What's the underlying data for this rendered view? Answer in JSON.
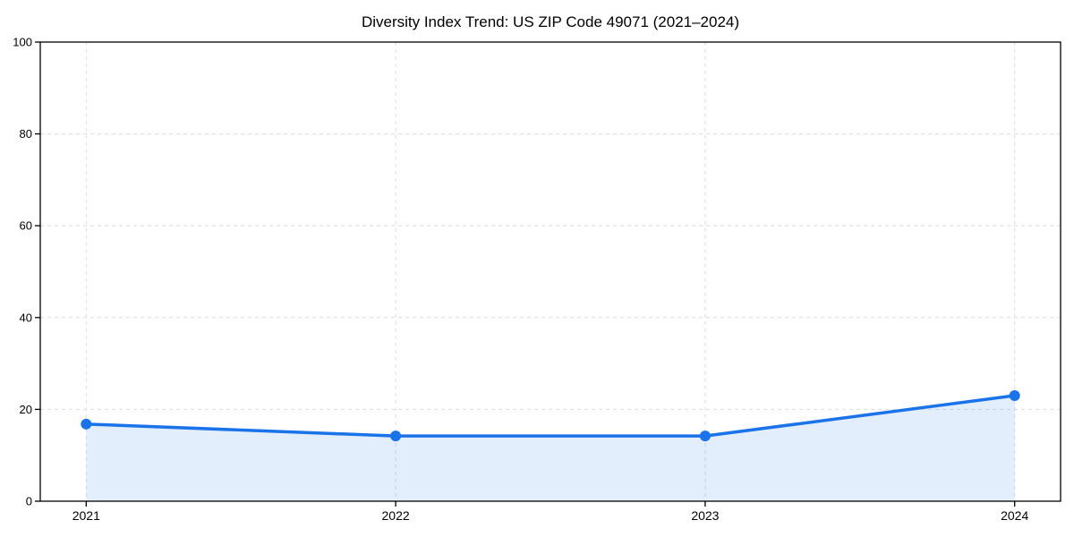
{
  "page": {
    "background": "#ffffff"
  },
  "chart_data": {
    "type": "area",
    "title": "Diversity Index Trend: US ZIP Code 49071 (2021–2024)",
    "x": [
      "2021",
      "2022",
      "2023",
      "2024"
    ],
    "series": [
      {
        "name": "Diversity Index",
        "values": [
          16.8,
          14.2,
          14.2,
          23.0
        ]
      }
    ],
    "xlabel": "",
    "ylabel": "",
    "ylim": [
      0,
      100
    ],
    "yticks": [
      0,
      20,
      40,
      60,
      80,
      100
    ],
    "xticks": [
      "2021",
      "2022",
      "2023",
      "2024"
    ],
    "grid": {
      "visible": true,
      "style": "dashed",
      "color": "#dcdcdc",
      "axes": "both"
    },
    "legend": "none",
    "colors": {
      "line": "#1a73e8",
      "marker": "#1a73e8",
      "fill": "rgba(26, 115, 232, 0.12)",
      "spine": "#000000",
      "tick_label": "#000000",
      "title": "#000000"
    }
  }
}
